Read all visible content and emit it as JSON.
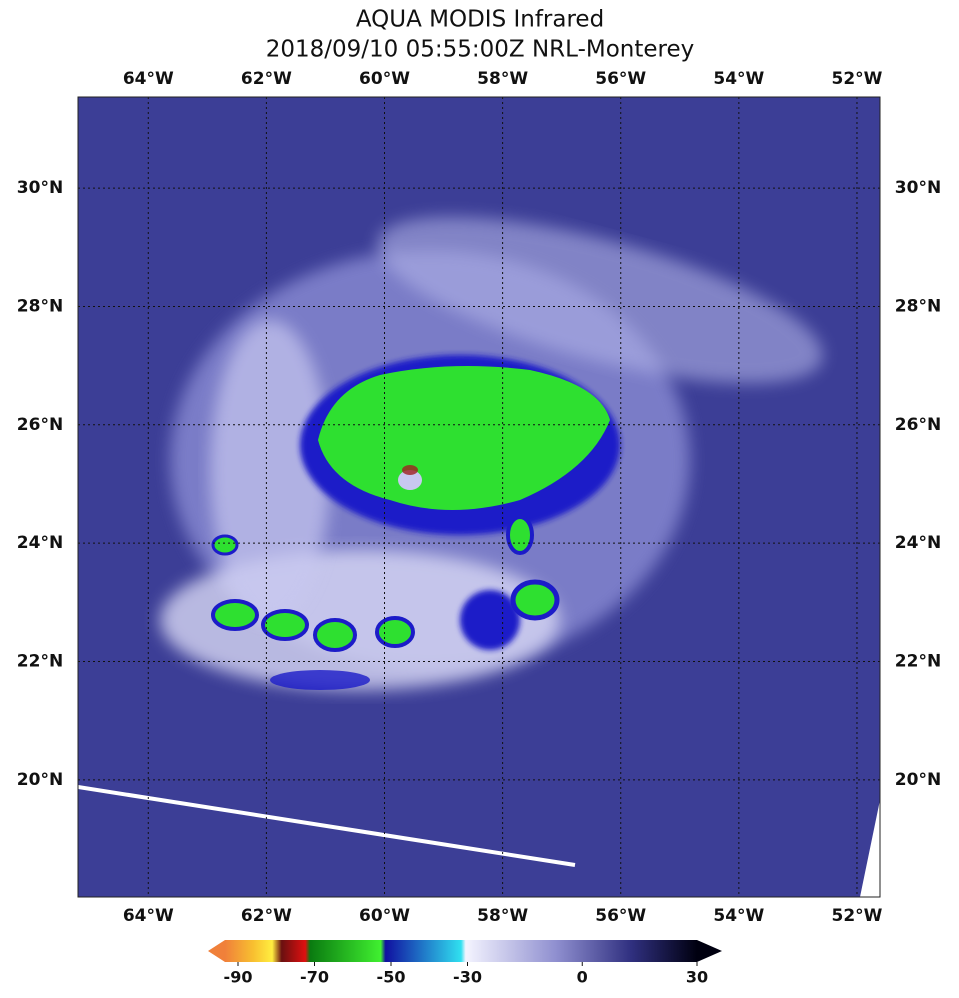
{
  "map": {
    "title": "AQUA MODIS Infrared",
    "subtitle": "2018/09/10 05:55:00Z NRL-Monterey",
    "lon_lim": [
      -65.19,
      -51.61
    ],
    "lat_lim": [
      18.02,
      31.54
    ],
    "lon_ticks": [
      {
        "value": -64,
        "label": "64°W"
      },
      {
        "value": -62,
        "label": "62°W"
      },
      {
        "value": -60,
        "label": "60°W"
      },
      {
        "value": -58,
        "label": "58°W"
      },
      {
        "value": -56,
        "label": "56°W"
      },
      {
        "value": -54,
        "label": "54°W"
      },
      {
        "value": -52,
        "label": "52°W"
      }
    ],
    "lat_ticks": [
      {
        "value": 30,
        "label": "30°N"
      },
      {
        "value": 28,
        "label": "28°N"
      },
      {
        "value": 26,
        "label": "26°N"
      },
      {
        "value": 24,
        "label": "24°N"
      },
      {
        "value": 22,
        "label": "22°N"
      },
      {
        "value": 20,
        "label": "20°N"
      }
    ],
    "colorbar_ticks": [
      -90,
      -70,
      -50,
      -30,
      0,
      30
    ]
  }
}
